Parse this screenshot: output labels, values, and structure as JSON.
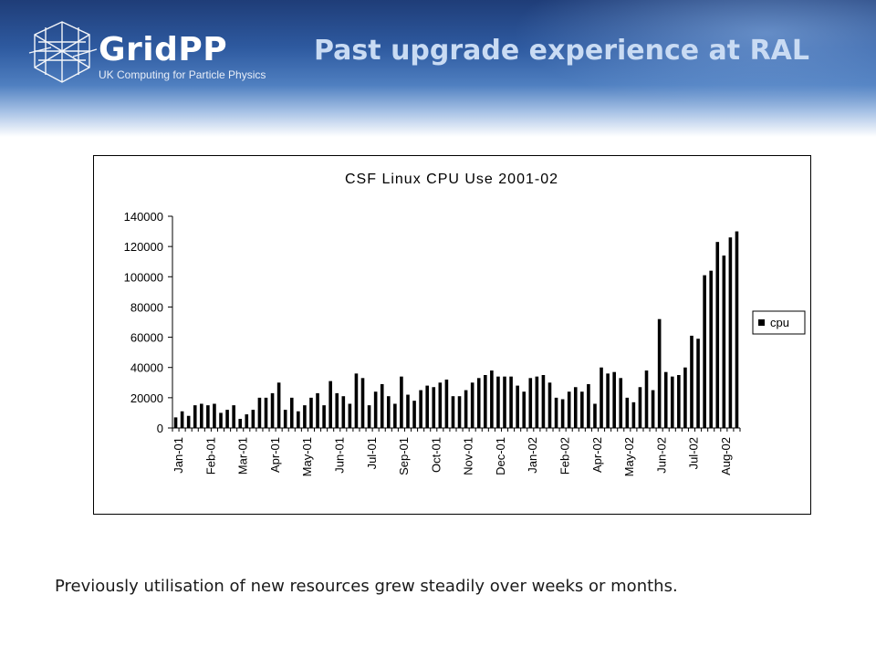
{
  "header": {
    "logo_name": "GridPP",
    "logo_subtitle": "UK Computing for Particle Physics",
    "title": "Past upgrade experience at RAL"
  },
  "caption": "Previously utilisation of new resources grew steadily over weeks or months.",
  "chart_data": {
    "type": "bar",
    "title": "CSF Linux CPU Use 2001-02",
    "xlabel": "",
    "ylabel": "",
    "ylim": [
      0,
      140000
    ],
    "yticks": [
      "0",
      "20000",
      "40000",
      "60000",
      "80000",
      "100000",
      "120000",
      "140000"
    ],
    "xticks": [
      "Jan-01",
      "Feb-01",
      "Mar-01",
      "Apr-01",
      "May-01",
      "Jun-01",
      "Jul-01",
      "Sep-01",
      "Oct-01",
      "Nov-01",
      "Dec-01",
      "Jan-02",
      "Feb-02",
      "Apr-02",
      "May-02",
      "Jun-02",
      "Jul-02",
      "Aug-02"
    ],
    "legend_position": "right",
    "grid": false,
    "bar_color": "#000000",
    "series": [
      {
        "name": "cpu",
        "values": [
          7000,
          11000,
          8000,
          15000,
          16000,
          15000,
          16000,
          10000,
          12000,
          15000,
          6000,
          9000,
          12000,
          20000,
          20000,
          23000,
          30000,
          12000,
          20000,
          11000,
          15000,
          20000,
          23000,
          15000,
          31000,
          23000,
          21000,
          16000,
          36000,
          33000,
          15000,
          24000,
          29000,
          21000,
          16000,
          34000,
          22000,
          18000,
          25000,
          28000,
          27000,
          30000,
          32000,
          21000,
          21000,
          25000,
          30000,
          33000,
          35000,
          38000,
          34000,
          34000,
          34000,
          28000,
          24000,
          33000,
          34000,
          35000,
          30000,
          20000,
          19000,
          24000,
          27000,
          24000,
          29000,
          16000,
          40000,
          36000,
          37000,
          33000,
          20000,
          17000,
          27000,
          38000,
          25000,
          72000,
          37000,
          34000,
          35000,
          40000,
          61000,
          59000,
          101000,
          104000,
          123000,
          114000,
          126000,
          130000
        ]
      }
    ]
  }
}
